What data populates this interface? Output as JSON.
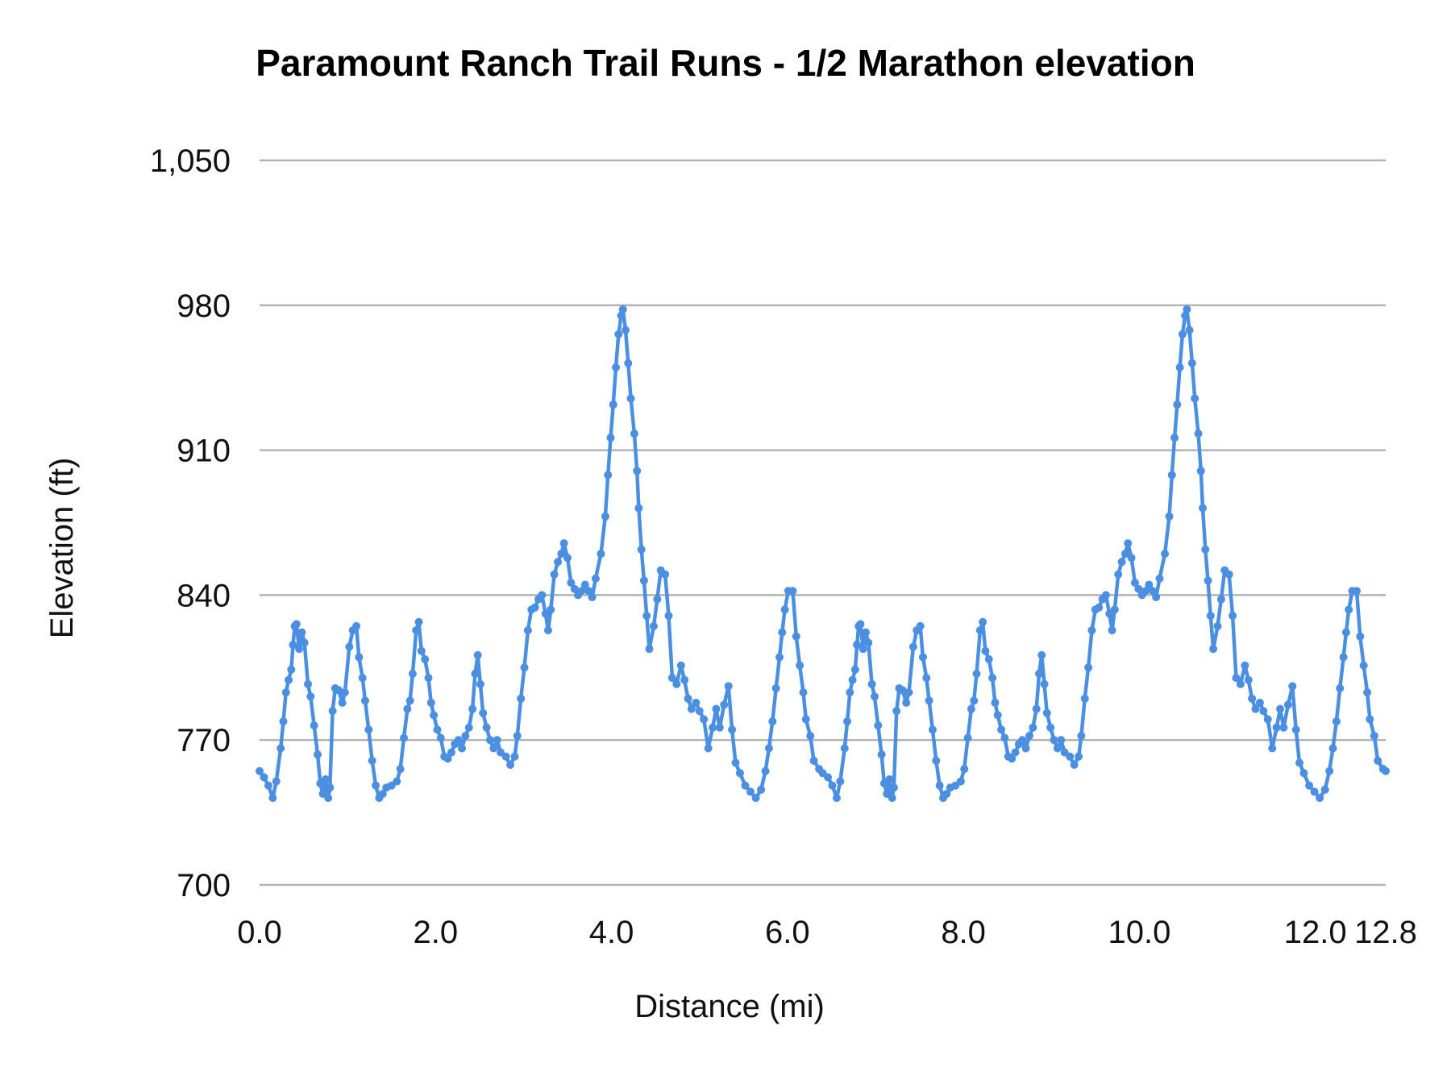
{
  "chart_data": {
    "type": "line",
    "title": "Paramount Ranch Trail Runs - 1/2 Marathon elevation",
    "xlabel": "Distance (mi)",
    "ylabel": "Elevation (ft)",
    "xlim": [
      0,
      12.8
    ],
    "ylim": [
      700,
      1050
    ],
    "x_ticks": [
      "0.0",
      "2.0",
      "4.0",
      "6.0",
      "8.0",
      "10.0",
      "12.0",
      "12.8"
    ],
    "x_tick_values": [
      0,
      2,
      4,
      6,
      8,
      10,
      12,
      12.8
    ],
    "y_ticks": [
      "700",
      "770",
      "840",
      "910",
      "980",
      "1,050"
    ],
    "y_tick_values": [
      700,
      770,
      840,
      910,
      980,
      1050
    ],
    "grid": "horizontal",
    "legend": "none",
    "markers": true,
    "colors": {
      "line": "#4a8fe2",
      "grid": "#b3b3b3"
    },
    "x": [
      0.0,
      0.05,
      0.1,
      0.15,
      0.19,
      0.24,
      0.27,
      0.3,
      0.33,
      0.36,
      0.38,
      0.4,
      0.42,
      0.45,
      0.48,
      0.51,
      0.55,
      0.58,
      0.62,
      0.66,
      0.69,
      0.72,
      0.75,
      0.78,
      0.8,
      0.83,
      0.86,
      0.9,
      0.94,
      0.97,
      1.02,
      1.06,
      1.1,
      1.13,
      1.17,
      1.2,
      1.24,
      1.28,
      1.32,
      1.36,
      1.4,
      1.44,
      1.5,
      1.56,
      1.6,
      1.64,
      1.68,
      1.71,
      1.74,
      1.78,
      1.81,
      1.84,
      1.88,
      1.92,
      1.95,
      1.98,
      2.02,
      2.06,
      2.1,
      2.14,
      2.18,
      2.22,
      2.26,
      2.3,
      2.34,
      2.38,
      2.42,
      2.45,
      2.48,
      2.51,
      2.54,
      2.58,
      2.62,
      2.66,
      2.7,
      2.74,
      2.8,
      2.85,
      2.9,
      2.93,
      2.97,
      3.01,
      3.05,
      3.09,
      3.13,
      3.17,
      3.21,
      3.25,
      3.28,
      3.31,
      3.35,
      3.39,
      3.43,
      3.46,
      3.5,
      3.54,
      3.58,
      3.62,
      3.66,
      3.7,
      3.74,
      3.78,
      3.82,
      3.88,
      3.93,
      3.96,
      3.99,
      4.02,
      4.05,
      4.08,
      4.11,
      4.13,
      4.16,
      4.19,
      4.22,
      4.26,
      4.29,
      4.31,
      4.34,
      4.37,
      4.4,
      4.43,
      4.48,
      4.52,
      4.56,
      4.61,
      4.65,
      4.69,
      4.74,
      4.79,
      4.83,
      4.87,
      4.91,
      4.96,
      5.0,
      5.05,
      5.1,
      5.15,
      5.19,
      5.23,
      5.28,
      5.33,
      5.37,
      5.41,
      5.46,
      5.52,
      5.58,
      5.64,
      5.7,
      5.75,
      5.79,
      5.83,
      5.87,
      5.91,
      5.94,
      5.97,
      6.01,
      6.06,
      6.1,
      6.14,
      6.18,
      6.21,
      6.26,
      6.3,
      6.36,
      6.4,
      6.46,
      6.51,
      6.56,
      6.6,
      6.65,
      6.68,
      6.71,
      6.74,
      6.77,
      6.79,
      6.81,
      6.83,
      6.86,
      6.89,
      6.92,
      6.96,
      6.99,
      7.03,
      7.07,
      7.1,
      7.13,
      7.16,
      7.19,
      7.21,
      7.24,
      7.27,
      7.31,
      7.35,
      7.38,
      7.43,
      7.47,
      7.51,
      7.54,
      7.58,
      7.61,
      7.65,
      7.69,
      7.73,
      7.77,
      7.81,
      7.85,
      7.91,
      7.97,
      8.01,
      8.05,
      8.09,
      8.12,
      8.15,
      8.19,
      8.22,
      8.25,
      8.29,
      8.33,
      8.36,
      8.39,
      8.43,
      8.47,
      8.51,
      8.55,
      8.59,
      8.63,
      8.67,
      8.71,
      8.75,
      8.79,
      8.83,
      8.86,
      8.89,
      8.92,
      8.95,
      8.99,
      9.03,
      9.07,
      9.11,
      9.15,
      9.21,
      9.26,
      9.31,
      9.34,
      9.38,
      9.42,
      9.46,
      9.5,
      9.54,
      9.58,
      9.62,
      9.66,
      9.69,
      9.72,
      9.76,
      9.8,
      9.84,
      9.87,
      9.91,
      9.95,
      9.99,
      10.03,
      10.07,
      10.11,
      10.15,
      10.19,
      10.23,
      10.29,
      10.34,
      10.37,
      10.4,
      10.43,
      10.46,
      10.49,
      10.52,
      10.54,
      10.57,
      10.6,
      10.63,
      10.67,
      10.7,
      10.72,
      10.75,
      10.78,
      10.81,
      10.84,
      10.89,
      10.93,
      10.97,
      11.02,
      11.06,
      11.1,
      11.15,
      11.2,
      11.24,
      11.28,
      11.32,
      11.37,
      11.41,
      11.46,
      11.51,
      11.56,
      11.6,
      11.64,
      11.69,
      11.74,
      11.78,
      11.82,
      11.87,
      11.93,
      11.99,
      12.05,
      12.11,
      12.16,
      12.2,
      12.24,
      12.28,
      12.32,
      12.35,
      12.38,
      12.42,
      12.47,
      12.51,
      12.55,
      12.59,
      12.62,
      12.67,
      12.71,
      12.77,
      12.8
    ],
    "y": [
      755,
      752,
      748,
      742,
      750,
      766,
      779,
      793,
      799,
      804,
      816,
      825,
      826,
      814,
      822,
      817,
      797,
      791,
      777,
      763,
      749,
      744,
      751,
      742,
      747,
      784,
      795,
      794,
      788,
      793,
      815,
      823,
      825,
      810,
      800,
      789,
      775,
      760,
      748,
      742,
      744,
      747,
      748,
      750,
      756,
      771,
      785,
      789,
      802,
      823,
      827,
      813,
      809,
      800,
      788,
      782,
      775,
      771,
      762,
      761,
      764,
      768,
      770,
      766,
      772,
      776,
      785,
      802,
      811,
      797,
      783,
      776,
      770,
      766,
      770,
      764,
      762,
      758,
      762,
      772,
      790,
      805,
      823,
      833,
      834,
      838,
      840,
      831,
      823,
      833,
      850,
      856,
      860,
      865,
      858,
      846,
      843,
      840,
      842,
      845,
      842,
      839,
      848,
      860,
      878,
      898,
      916,
      932,
      950,
      966,
      975,
      978,
      968,
      952,
      935,
      918,
      900,
      882,
      862,
      847,
      830,
      814,
      825,
      838,
      852,
      850,
      830,
      800,
      797,
      806,
      799,
      790,
      785,
      788,
      784,
      780,
      766,
      776,
      785,
      776,
      787,
      796,
      775,
      759,
      754,
      748,
      745,
      742,
      746,
      755,
      766,
      779,
      795,
      810,
      822,
      833,
      842,
      842,
      820,
      806,
      793,
      780,
      772,
      760,
      756,
      754,
      752,
      748,
      742,
      750,
      766,
      779,
      793,
      799,
      804,
      816,
      825,
      826,
      814,
      822,
      817,
      797,
      791,
      777,
      763,
      749,
      744,
      751,
      742,
      747,
      784,
      795,
      794,
      788,
      793,
      815,
      823,
      825,
      810,
      800,
      789,
      775,
      760,
      748,
      742,
      744,
      747,
      748,
      750,
      756,
      771,
      785,
      789,
      802,
      823,
      827,
      813,
      809,
      800,
      788,
      782,
      775,
      771,
      762,
      761,
      764,
      768,
      770,
      766,
      772,
      776,
      785,
      802,
      811,
      797,
      783,
      776,
      770,
      766,
      770,
      764,
      762,
      758,
      762,
      772,
      790,
      805,
      823,
      833,
      834,
      838,
      840,
      831,
      823,
      833,
      850,
      856,
      860,
      865,
      858,
      846,
      843,
      840,
      842,
      845,
      842,
      839,
      848,
      860,
      878,
      898,
      916,
      932,
      950,
      966,
      975,
      978,
      968,
      952,
      935,
      918,
      900,
      882,
      862,
      847,
      830,
      814,
      825,
      838,
      852,
      850,
      830,
      800,
      797,
      806,
      799,
      790,
      785,
      788,
      784,
      780,
      766,
      776,
      785,
      776,
      787,
      796,
      775,
      759,
      754,
      748,
      745,
      742,
      746,
      755,
      766,
      779,
      795,
      810,
      822,
      833,
      842,
      842,
      820,
      806,
      793,
      780,
      772,
      760,
      756,
      755
    ]
  }
}
